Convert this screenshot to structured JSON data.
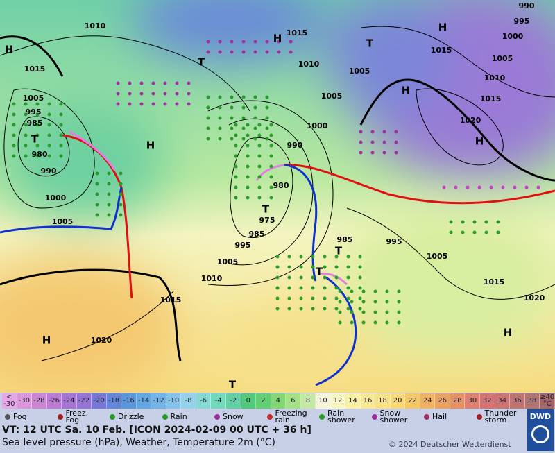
{
  "map": {
    "pressure_labels": [
      "1010",
      "1015",
      "1010",
      "1005",
      "1005",
      "1000",
      "990",
      "980",
      "975",
      "985",
      "995",
      "1005",
      "1010",
      "1015",
      "1020",
      "1005",
      "995",
      "985",
      "980",
      "990",
      "1000",
      "1005",
      "1015",
      "985",
      "995",
      "1005",
      "1015",
      "1020",
      "1020",
      "1015",
      "1010",
      "1005",
      "1000",
      "995",
      "990",
      "1015"
    ],
    "centers": [
      "H",
      "T",
      "H",
      "T",
      "H",
      "H",
      "H",
      "H",
      "T",
      "T",
      "T",
      "T",
      "T",
      "H",
      "H"
    ]
  },
  "scale": {
    "labels": [
      "<\n-30",
      "-30",
      "-28",
      "-26",
      "-24",
      "-22",
      "-20",
      "-18",
      "-16",
      "-14",
      "-12",
      "-10",
      "-8",
      "-6",
      "-4",
      "-2",
      "0",
      "2",
      "4",
      "6",
      "8",
      "10",
      "12",
      "14",
      "16",
      "18",
      "20",
      "22",
      "24",
      "26",
      "28",
      "30",
      "32",
      "34",
      "36",
      "38",
      "≥40\n°C"
    ],
    "colors": [
      "#e6a8e6",
      "#dc96dc",
      "#cc86d4",
      "#bc7ad2",
      "#a674d2",
      "#9474d4",
      "#7676d4",
      "#6486da",
      "#5a96da",
      "#62a6e2",
      "#72b4e8",
      "#84c4ea",
      "#94d2ea",
      "#84dad2",
      "#72d8ba",
      "#62d0a2",
      "#52c87a",
      "#62d072",
      "#84d874",
      "#a4e084",
      "#c4e8a4",
      "#f4f4d8",
      "#f8f8c4",
      "#f8f0a4",
      "#f8e894",
      "#f8e084",
      "#f8d874",
      "#f6c864",
      "#f0b262",
      "#eca262",
      "#e69064",
      "#de8070",
      "#d67272",
      "#ce7474",
      "#c07472",
      "#b27470",
      "#a46666"
    ]
  },
  "legend": [
    "Fog",
    "Freez.\nFog",
    "Drizzle",
    "Rain",
    "Snow",
    "Freezing\nrain",
    "Rain\nshower",
    "Snow\nshower",
    "Hail",
    "Thunder\nstorm"
  ],
  "footer": {
    "line1": "VT: 12 UTC Sa.  10 Feb. [ICON 2024-02-09  00 UTC + 36 h]",
    "line2": "Sea level pressure (hPa), Weather, Temperature 2m (°C)",
    "copyright": "© 2024 Deutscher Wetterdienst",
    "logo": "DWD"
  }
}
